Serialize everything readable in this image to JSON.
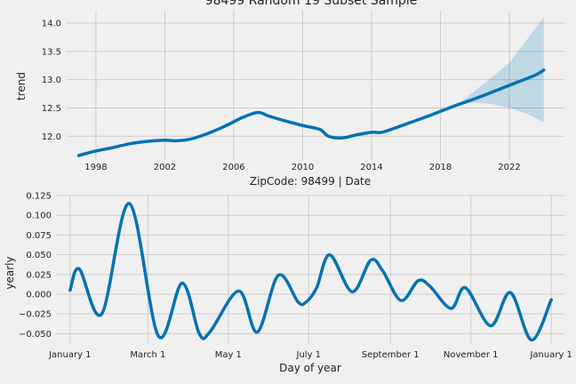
{
  "chart_data": [
    {
      "type": "line",
      "title": "98499 Random 19 Subset Sample",
      "xlabel": "ZipCode: 98499 | Date",
      "ylabel": "trend",
      "xlim": [
        1996.3,
        2025.2
      ],
      "ylim": [
        11.58,
        14.22
      ],
      "grid": true,
      "x_ticks": [
        1998,
        2002,
        2006,
        2010,
        2014,
        2018,
        2022
      ],
      "y_ticks": [
        12.0,
        12.5,
        13.0,
        13.5,
        14.0
      ],
      "x_tick_labels": [
        "1998",
        "2002",
        "2006",
        "2010",
        "2014",
        "2018",
        "2022"
      ],
      "y_tick_labels": [
        "12.0",
        "12.5",
        "13.0",
        "13.5",
        "14.0"
      ],
      "line_color": "#0072b2",
      "band_color": "#0072b2",
      "series": [
        {
          "x": [
            1997.0,
            1998.0,
            1999.0,
            2000.0,
            2001.0,
            2002.0,
            2002.7,
            2003.5,
            2004.5,
            2005.5,
            2006.5,
            2007.4,
            2008.0,
            2009.0,
            2010.0,
            2011.0,
            2011.5,
            2012.3,
            2013.2,
            2014.0,
            2014.6,
            2015.5,
            2016.5,
            2017.5,
            2018.5,
            2019.5,
            2020.5,
            2021.5,
            2022.5,
            2023.5,
            2024.0
          ],
          "y": [
            11.66,
            11.74,
            11.8,
            11.87,
            11.91,
            11.93,
            11.92,
            11.95,
            12.05,
            12.18,
            12.33,
            12.42,
            12.36,
            12.27,
            12.19,
            12.12,
            12.0,
            11.97,
            12.03,
            12.07,
            12.07,
            12.16,
            12.27,
            12.38,
            12.5,
            12.61,
            12.72,
            12.84,
            12.96,
            13.08,
            13.17
          ]
        }
      ],
      "uncertainty_band": {
        "x": [
          2019.0,
          2020.0,
          2021.0,
          2022.0,
          2023.0,
          2024.0
        ],
        "upper": [
          12.56,
          12.8,
          13.05,
          13.3,
          13.7,
          14.1
        ],
        "lower": [
          12.56,
          12.6,
          12.57,
          12.5,
          12.4,
          12.25
        ]
      }
    },
    {
      "type": "line",
      "xlabel": "Day of year",
      "ylabel": "yearly",
      "xlim": [
        -10,
        375
      ],
      "ylim": [
        -0.062,
        0.125
      ],
      "grid": true,
      "x_ticks": [
        0,
        59,
        120,
        181,
        243,
        304,
        365
      ],
      "x_tick_labels": [
        "January 1",
        "March 1",
        "May 1",
        "July 1",
        "September 1",
        "November 1",
        "January 1"
      ],
      "y_ticks": [
        -0.05,
        -0.025,
        0.0,
        0.025,
        0.05,
        0.075,
        0.1,
        0.125
      ],
      "y_tick_labels": [
        "−0.050",
        "−0.025",
        "0.000",
        "0.025",
        "0.050",
        "0.075",
        "0.100",
        "0.125"
      ],
      "line_color": "#0072b2",
      "series": [
        {
          "x": [
            0,
            7,
            24,
            45,
            67,
            85,
            98,
            106,
            128,
            142,
            158,
            173,
            179,
            187,
            197,
            214,
            228,
            237,
            251,
            264,
            273,
            289,
            300,
            319,
            334,
            350,
            365
          ],
          "y": [
            0.005,
            0.032,
            -0.025,
            0.115,
            -0.053,
            0.014,
            -0.05,
            -0.048,
            0.004,
            -0.048,
            0.024,
            -0.01,
            -0.01,
            0.008,
            0.05,
            0.003,
            0.043,
            0.03,
            -0.008,
            0.017,
            0.01,
            -0.018,
            0.008,
            -0.04,
            0.002,
            -0.058,
            -0.007
          ]
        }
      ]
    }
  ]
}
